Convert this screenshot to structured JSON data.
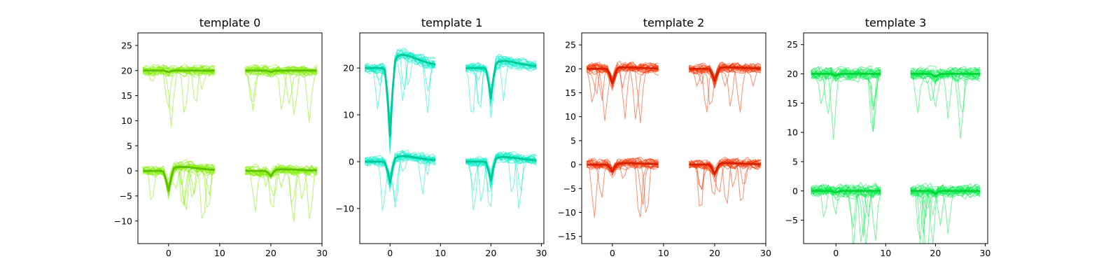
{
  "chart_data": [
    {
      "type": "line",
      "title": "template 0",
      "color": "#80ee00",
      "mean_color": "#5ec000",
      "xlim": [
        -6.0,
        30.0
      ],
      "ylim": [
        -14.5,
        27.5
      ],
      "xticks": [
        0,
        10,
        20,
        30
      ],
      "yticks": [
        -10,
        -5,
        0,
        5,
        10,
        15,
        20,
        25
      ],
      "channel_offsets": [
        0,
        20
      ],
      "segments": [
        {
          "name": "channel 0, segment A",
          "offset": 0,
          "x_start": -5,
          "x_end": 9,
          "trough_x": 0,
          "trough_depth": -4.0,
          "rebound": 0.8,
          "noise": 0.8
        },
        {
          "name": "channel 0, segment B",
          "offset": 0,
          "x_start": 15,
          "x_end": 29,
          "trough_x": 20,
          "trough_depth": -1.0,
          "rebound": 0.3,
          "noise": 0.8
        },
        {
          "name": "channel 1, segment A",
          "offset": 20,
          "x_start": -5,
          "x_end": 9,
          "trough_x": 0,
          "trough_depth": -0.3,
          "rebound": 0.0,
          "noise": 0.8
        },
        {
          "name": "channel 1, segment B",
          "offset": 20,
          "x_start": 15,
          "x_end": 29,
          "trough_x": 20,
          "trough_depth": -0.3,
          "rebound": 0.0,
          "noise": 0.8
        }
      ]
    },
    {
      "type": "line",
      "title": "template 1",
      "color": "#00f0c8",
      "mean_color": "#00c898",
      "xlim": [
        -6.0,
        30.5
      ],
      "ylim": [
        -17.5,
        27.5
      ],
      "xticks": [
        0,
        10,
        20,
        30
      ],
      "yticks": [
        -10,
        0,
        10,
        20
      ],
      "channel_offsets": [
        0,
        20
      ],
      "segments": [
        {
          "name": "channel 0, segment A",
          "offset": 0,
          "x_start": -5,
          "x_end": 9,
          "trough_x": 0,
          "trough_depth": -4.5,
          "rebound": 1.2,
          "noise": 0.8
        },
        {
          "name": "channel 0, segment B",
          "offset": 0,
          "x_start": 15,
          "x_end": 29,
          "trough_x": 20,
          "trough_depth": -4.0,
          "rebound": 1.0,
          "noise": 0.8
        },
        {
          "name": "channel 1, segment A",
          "offset": 20,
          "x_start": -5,
          "x_end": 9,
          "trough_x": 0,
          "trough_depth": -14.5,
          "rebound": 2.8,
          "noise": 0.8
        },
        {
          "name": "channel 1, segment B",
          "offset": 20,
          "x_start": 15,
          "x_end": 29,
          "trough_x": 20,
          "trough_depth": -6.5,
          "rebound": 1.5,
          "noise": 0.8
        }
      ]
    },
    {
      "type": "line",
      "title": "template 2",
      "color": "#ff3300",
      "mean_color": "#d42200",
      "xlim": [
        -6.0,
        30.0
      ],
      "ylim": [
        -16.5,
        27.5
      ],
      "xticks": [
        0,
        10,
        20,
        30
      ],
      "yticks": [
        -15,
        -10,
        -5,
        0,
        5,
        10,
        15,
        20,
        25
      ],
      "channel_offsets": [
        0,
        20
      ],
      "segments": [
        {
          "name": "channel 0, segment A",
          "offset": 0,
          "x_start": -5,
          "x_end": 9,
          "trough_x": 0,
          "trough_depth": -1.5,
          "rebound": 0.3,
          "noise": 0.8
        },
        {
          "name": "channel 0, segment B",
          "offset": 0,
          "x_start": 15,
          "x_end": 29,
          "trough_x": 20,
          "trough_depth": -2.0,
          "rebound": 0.3,
          "noise": 0.8
        },
        {
          "name": "channel 1, segment A",
          "offset": 20,
          "x_start": -5,
          "x_end": 9,
          "trough_x": 0,
          "trough_depth": -3.0,
          "rebound": 0.3,
          "noise": 0.8
        },
        {
          "name": "channel 1, segment B",
          "offset": 20,
          "x_start": 15,
          "x_end": 29,
          "trough_x": 20,
          "trough_depth": -2.5,
          "rebound": 0.3,
          "noise": 0.8
        }
      ]
    },
    {
      "type": "line",
      "title": "template 3",
      "color": "#00f048",
      "mean_color": "#00d238",
      "xlim": [
        -6.5,
        30.5
      ],
      "ylim": [
        -9.0,
        27.0
      ],
      "xticks": [
        0,
        10,
        20,
        30
      ],
      "yticks": [
        -5,
        0,
        5,
        10,
        15,
        20,
        25
      ],
      "channel_offsets": [
        0,
        20
      ],
      "segments": [
        {
          "name": "channel 0, segment A",
          "offset": 0,
          "x_start": -5,
          "x_end": 9,
          "trough_x": 0,
          "trough_depth": -0.3,
          "rebound": 0.0,
          "noise": 0.8
        },
        {
          "name": "channel 0, segment B",
          "offset": 0,
          "x_start": 15,
          "x_end": 29,
          "trough_x": 20,
          "trough_depth": -0.5,
          "rebound": 0.0,
          "noise": 0.8
        },
        {
          "name": "channel 1, segment A",
          "offset": 20,
          "x_start": -5,
          "x_end": 9,
          "trough_x": 0,
          "trough_depth": -0.3,
          "rebound": 0.0,
          "noise": 0.8
        },
        {
          "name": "channel 1, segment B",
          "offset": 20,
          "x_start": 15,
          "x_end": 29,
          "trough_x": 20,
          "trough_depth": -0.5,
          "rebound": 0.0,
          "noise": 0.8
        }
      ]
    }
  ]
}
